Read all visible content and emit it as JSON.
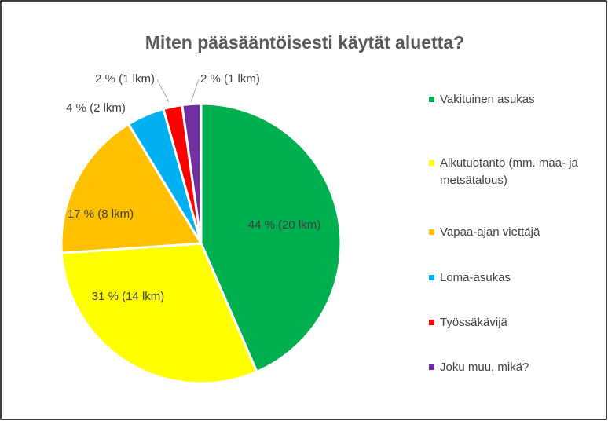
{
  "chart_data": {
    "type": "pie",
    "title": "Miten pääsääntöisesti  käytät aluetta?",
    "categories": [
      "Vakituinen asukas",
      "Alkutuotanto (mm. maa- ja metsätalous)",
      "Vapaa-ajan viettäjä",
      "Loma-asukas",
      "Työssäkävijä",
      "Joku muu, mikä?"
    ],
    "values": [
      20,
      14,
      8,
      2,
      1,
      1
    ],
    "value_labels": [
      "44 % (20 lkm)",
      "31 % (14 lkm)",
      "17 % (8 lkm)",
      "4 % (2 lkm)",
      "2 % (1 lkm)",
      "2 % (1 lkm)"
    ],
    "colors": [
      "#00b050",
      "#ffff00",
      "#ffc000",
      "#00b0f0",
      "#ff0000",
      "#7030a0"
    ],
    "legend": "right"
  }
}
